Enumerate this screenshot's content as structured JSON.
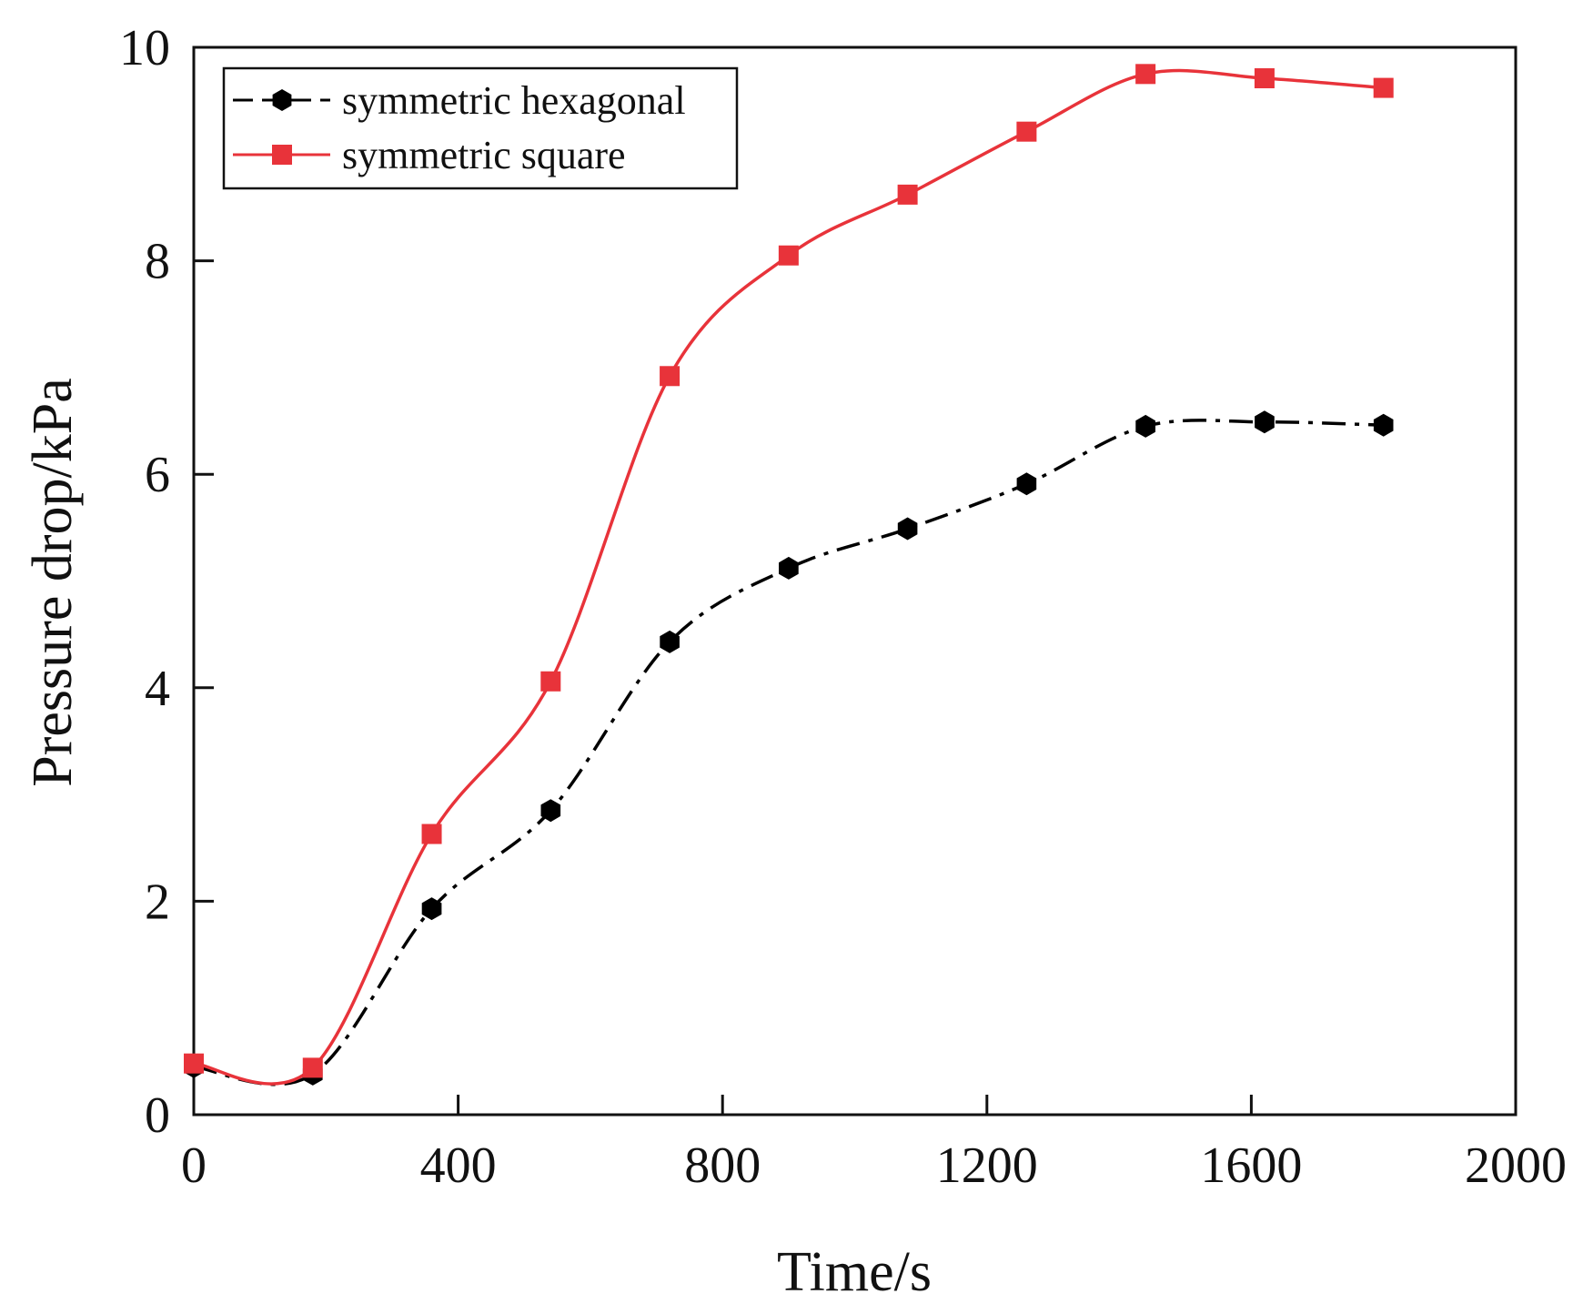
{
  "chart_data": {
    "type": "line",
    "title": "",
    "xlabel": "Time/s",
    "ylabel": "Pressure drop/kPa",
    "xlim": [
      0,
      2000
    ],
    "ylim": [
      0,
      10
    ],
    "xticks": [
      0,
      400,
      800,
      1200,
      1600,
      2000
    ],
    "yticks": [
      0,
      2,
      4,
      6,
      8,
      10
    ],
    "xtick_labels": [
      "0",
      "400",
      "800",
      "1200",
      "1600",
      "2000"
    ],
    "ytick_labels": [
      "0",
      "2",
      "4",
      "6",
      "8",
      "10"
    ],
    "grid": false,
    "legend_position": "top-left",
    "series": [
      {
        "name": "symmetric hexagonal",
        "color": "#000000",
        "line_style": "dash-dot",
        "marker": "hexagon",
        "x": [
          0,
          180,
          360,
          540,
          720,
          900,
          1080,
          1260,
          1440,
          1620,
          1800
        ],
        "y": [
          0.45,
          0.38,
          1.93,
          2.85,
          4.43,
          5.12,
          5.49,
          5.91,
          6.45,
          6.49,
          6.46
        ]
      },
      {
        "name": "symmetric square",
        "color": "#e8333a",
        "line_style": "solid",
        "marker": "square",
        "x": [
          0,
          180,
          360,
          540,
          720,
          900,
          1080,
          1260,
          1440,
          1620,
          1800
        ],
        "y": [
          0.48,
          0.44,
          2.63,
          4.06,
          6.92,
          8.05,
          8.62,
          9.21,
          9.75,
          9.71,
          9.62
        ]
      }
    ]
  }
}
